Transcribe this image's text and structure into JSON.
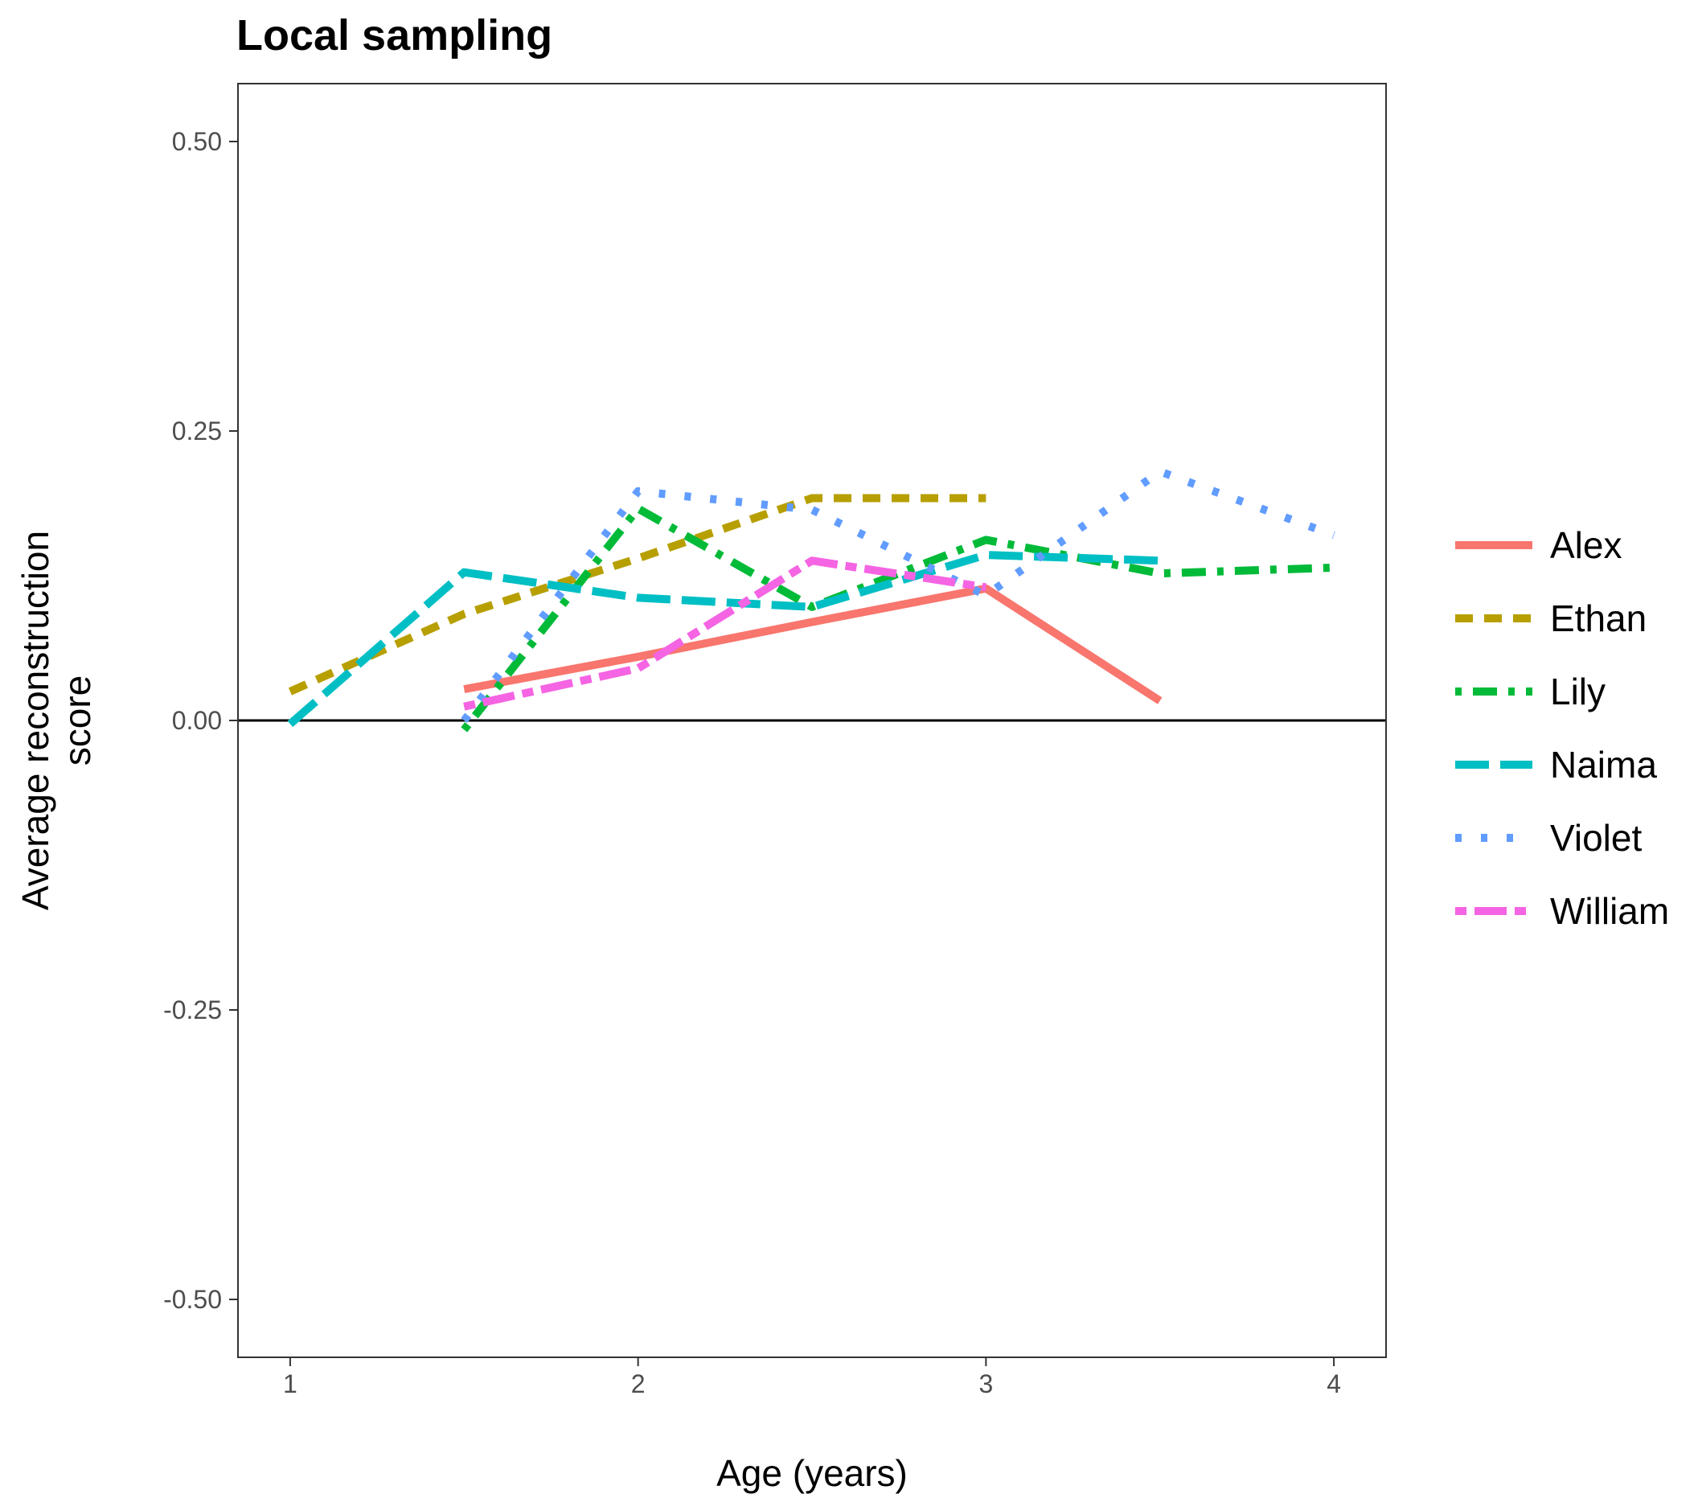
{
  "chart_data": {
    "type": "line",
    "title": "Local sampling",
    "xlabel": "Age (years)",
    "ylabel": "Average reconstruction score",
    "xlim": [
      0.85,
      4.15
    ],
    "ylim": [
      -0.55,
      0.55
    ],
    "x_ticks": [
      1,
      2,
      3,
      4
    ],
    "x_tick_labels": [
      "1",
      "2",
      "3",
      "4"
    ],
    "y_ticks": [
      -0.5,
      -0.25,
      0,
      0.25,
      0.5
    ],
    "y_tick_labels": [
      "-0.50",
      "-0.25",
      "0.00",
      "0.25",
      "0.50"
    ],
    "reference_line": 0,
    "grid": false,
    "legend_position": "right",
    "series": [
      {
        "name": "Alex",
        "color": "#F8766D",
        "dash": "solid",
        "x": [
          1.5,
          2.0,
          2.5,
          3.0,
          3.5
        ],
        "y": [
          0.027,
          0.055,
          0.085,
          0.114,
          0.017
        ]
      },
      {
        "name": "Ethan",
        "color": "#B79F00",
        "dash": "dashed",
        "x": [
          1.0,
          1.5,
          2.0,
          2.5,
          3.0
        ],
        "y": [
          0.025,
          0.092,
          0.14,
          0.192,
          0.192
        ]
      },
      {
        "name": "Lily",
        "color": "#00BA38",
        "dash": "dotdash",
        "x": [
          1.5,
          2.0,
          2.5,
          3.0,
          3.5,
          4.0
        ],
        "y": [
          -0.008,
          0.183,
          0.098,
          0.156,
          0.127,
          0.132
        ]
      },
      {
        "name": "Naima",
        "color": "#00BFC4",
        "dash": "longdash",
        "x": [
          1.0,
          1.5,
          2.0,
          2.5,
          3.0,
          3.5
        ],
        "y": [
          -0.003,
          0.128,
          0.106,
          0.098,
          0.143,
          0.138
        ]
      },
      {
        "name": "Violet",
        "color": "#619CFF",
        "dash": "dotted",
        "x": [
          1.5,
          2.0,
          2.5,
          3.0,
          3.5,
          4.0
        ],
        "y": [
          0.0,
          0.198,
          0.182,
          0.108,
          0.215,
          0.16
        ]
      },
      {
        "name": "William",
        "color": "#F564E3",
        "dash": "twodash",
        "x": [
          1.5,
          2.0,
          2.5,
          3.0
        ],
        "y": [
          0.012,
          0.045,
          0.138,
          0.115
        ]
      }
    ]
  }
}
